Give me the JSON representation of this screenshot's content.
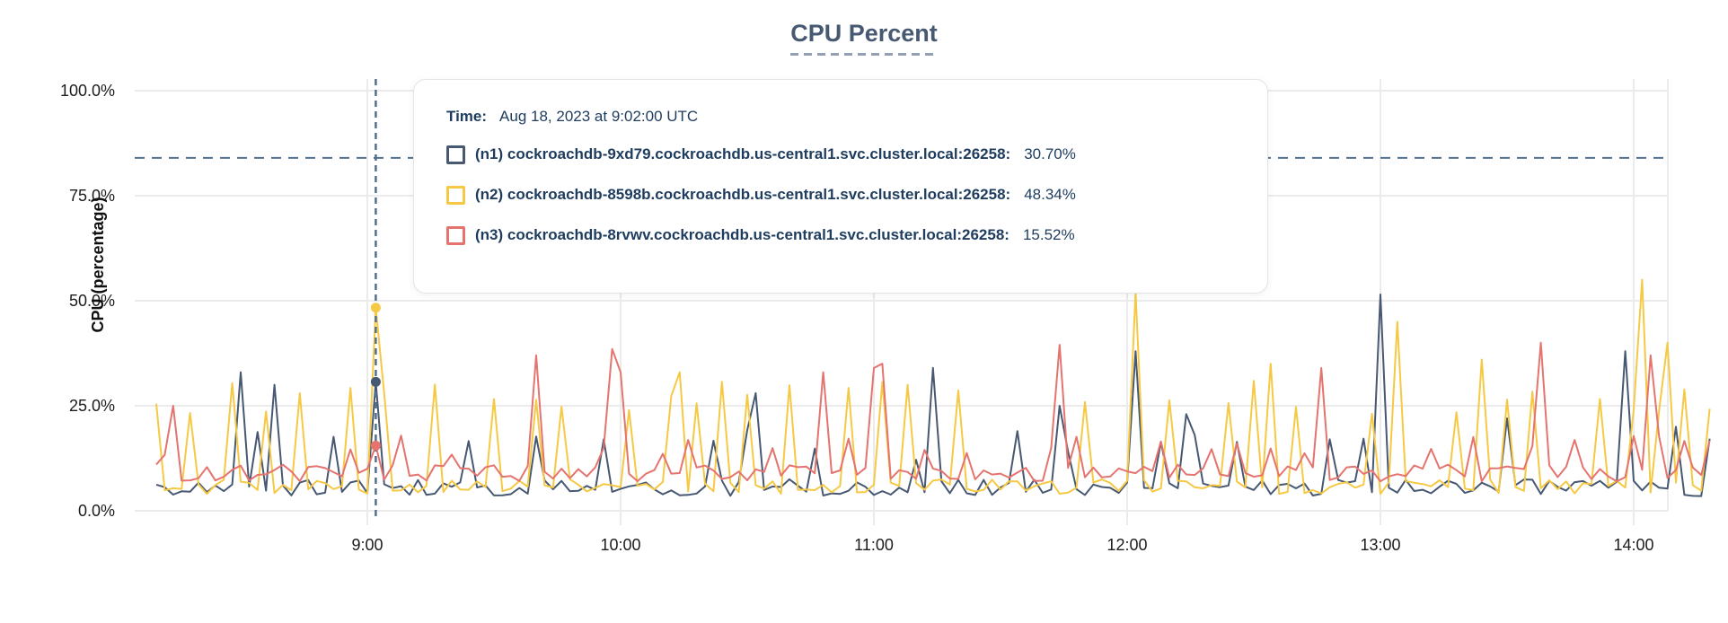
{
  "title": "CPU Percent",
  "y_axis_title": "CPU (percentage)",
  "tooltip": {
    "time_label": "Time:",
    "time_value": "Aug 18, 2023 at 9:02:00 UTC",
    "rows": [
      {
        "id": "n1",
        "label": "(n1) cockroachdb-9xd79.cockroachdb.us-central1.svc.cluster.local:26258:",
        "value": "30.70%",
        "color": "#475872"
      },
      {
        "id": "n2",
        "label": "(n2) cockroachdb-8598b.cockroachdb.us-central1.svc.cluster.local:26258:",
        "value": "48.34%",
        "color": "#F6C944"
      },
      {
        "id": "n3",
        "label": "(n3) cockroachdb-8rvwv.cockroachdb.us-central1.svc.cluster.local:26258:",
        "value": "15.52%",
        "color": "#E5736E"
      }
    ]
  },
  "chart_data": {
    "type": "line",
    "title": "CPU Percent",
    "xlabel": "",
    "ylabel": "CPU (percentage)",
    "ylim": [
      0,
      100
    ],
    "grid": true,
    "y_ticks": [
      {
        "value": 0,
        "label": "0.0%"
      },
      {
        "value": 25,
        "label": "25.0%"
      },
      {
        "value": 50,
        "label": "50.0%"
      },
      {
        "value": 75,
        "label": "75.0%"
      },
      {
        "value": 100,
        "label": "100.0%"
      }
    ],
    "x_ticks": [
      {
        "minutes": 540,
        "label": "9:00"
      },
      {
        "minutes": 600,
        "label": "10:00"
      },
      {
        "minutes": 660,
        "label": "11:00"
      },
      {
        "minutes": 720,
        "label": "12:00"
      },
      {
        "minutes": 780,
        "label": "13:00"
      },
      {
        "minutes": 840,
        "label": "14:00"
      }
    ],
    "x_domain_minutes": [
      490,
      858
    ],
    "step_minutes": 2,
    "threshold_pct": 84,
    "hover": {
      "minutes": 542,
      "time_text": "Aug 18, 2023 at 9:02:00 UTC",
      "points": [
        {
          "series": "n1",
          "value": 30.7
        },
        {
          "series": "n2",
          "value": 48.34
        },
        {
          "series": "n3",
          "value": 15.52
        }
      ]
    },
    "series": [
      {
        "id": "n1",
        "name": "(n1) cockroachdb-9xd79.cockroachdb.us-central1.svc.cluster.local:26258",
        "color": "#475872",
        "seed": 17,
        "baseline": [
          3.5,
          7.5
        ],
        "spike_chance": 0.1,
        "spike_range": [
          10,
          20
        ],
        "peaks": [
          [
            509,
            33
          ],
          [
            517,
            30
          ],
          [
            542,
            30.7
          ],
          [
            595,
            17
          ],
          [
            632,
            28
          ],
          [
            674,
            34
          ],
          [
            704,
            25
          ],
          [
            722,
            38
          ],
          [
            733,
            23
          ],
          [
            767,
            17
          ],
          [
            780,
            51.5
          ],
          [
            809,
            22
          ],
          [
            838,
            38
          ],
          [
            849,
            20
          ]
        ]
      },
      {
        "id": "n2",
        "name": "(n2) cockroachdb-8598b.cockroachdb.us-central1.svc.cluster.local:26258",
        "color": "#F6C944",
        "seed": 29,
        "baseline": [
          4.0,
          7.5
        ],
        "spike_chance": 0.34,
        "spike_range": [
          23,
          31
        ],
        "peaks": [
          [
            542,
            48.34
          ],
          [
            613,
            33
          ],
          [
            668,
            30
          ],
          [
            722,
            52
          ],
          [
            753,
            35
          ],
          [
            784,
            45
          ],
          [
            803,
            36
          ],
          [
            841,
            55
          ],
          [
            847,
            40
          ]
        ]
      },
      {
        "id": "n3",
        "name": "(n3) cockroachdb-8rvwv.cockroachdb.us-central1.svc.cluster.local:26258",
        "color": "#E5736E",
        "seed": 43,
        "baseline": [
          7.0,
          11.0
        ],
        "spike_chance": 0.22,
        "spike_range": [
          13,
          18
        ],
        "peaks": [
          [
            493,
            25
          ],
          [
            542,
            15.52
          ],
          [
            580,
            37
          ],
          [
            598,
            38.5
          ],
          [
            600,
            33
          ],
          [
            647,
            33
          ],
          [
            659,
            34
          ],
          [
            661,
            35
          ],
          [
            703,
            39.5
          ],
          [
            765,
            34
          ],
          [
            817,
            40
          ],
          [
            843,
            37
          ]
        ]
      }
    ],
    "colors": {
      "grid": "#ebebec",
      "axis_text": "#1c1c1c",
      "title": "#475872",
      "dashed_guides": "#52708e",
      "tooltip_text": "#1e3c5e"
    }
  }
}
